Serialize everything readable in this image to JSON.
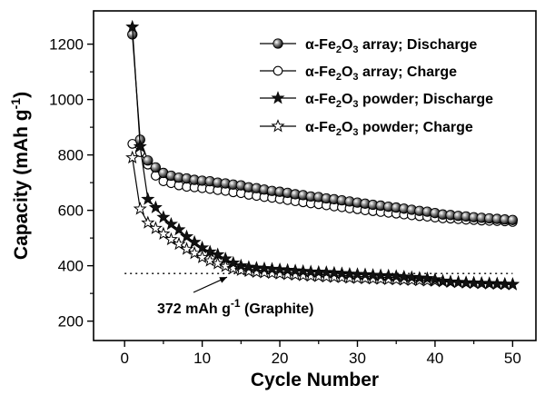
{
  "chart_data": {
    "type": "line",
    "xlabel": "Cycle Number",
    "ylabel": "Capacity (mAh g",
    "ylabel_sup": "-1",
    "ylabel_end": ")",
    "xlim": [
      -4,
      53
    ],
    "ylim": [
      130,
      1320
    ],
    "xticks": [
      0,
      10,
      20,
      30,
      40,
      50
    ],
    "yticks": [
      200,
      400,
      600,
      800,
      1000,
      1200
    ],
    "reference_line": {
      "y": 372,
      "x_range": [
        0,
        50
      ],
      "style": "dotted",
      "label_main": "372 mAh g",
      "label_sup": "-1",
      "label_end": " (Graphite)"
    },
    "legend_position": "top-right",
    "series": [
      {
        "name_pre": "α-Fe",
        "name_sub1": "2",
        "name_mid": "O",
        "name_sub2": "3",
        "name_post": " array; Discharge",
        "marker": "sphere",
        "x": [
          1,
          2,
          3,
          4,
          5,
          6,
          7,
          8,
          9,
          10,
          11,
          12,
          13,
          14,
          15,
          16,
          17,
          18,
          19,
          20,
          21,
          22,
          23,
          24,
          25,
          26,
          27,
          28,
          29,
          30,
          31,
          32,
          33,
          34,
          35,
          36,
          37,
          38,
          39,
          40,
          41,
          42,
          43,
          44,
          45,
          46,
          47,
          48,
          49,
          50
        ],
        "y": [
          1235,
          855,
          780,
          755,
          735,
          725,
          718,
          715,
          710,
          707,
          705,
          700,
          697,
          693,
          690,
          683,
          680,
          675,
          670,
          667,
          663,
          658,
          655,
          650,
          648,
          643,
          640,
          636,
          632,
          628,
          624,
          620,
          617,
          613,
          610,
          606,
          602,
          598,
          595,
          590,
          585,
          583,
          580,
          578,
          575,
          573,
          571,
          569,
          567,
          565
        ]
      },
      {
        "name_pre": "α-Fe",
        "name_sub1": "2",
        "name_mid": "O",
        "name_sub2": "3",
        "name_post": " array; Charge",
        "marker": "circle",
        "x": [
          1,
          2,
          3,
          4,
          5,
          6,
          7,
          8,
          9,
          10,
          11,
          12,
          13,
          14,
          15,
          16,
          17,
          18,
          19,
          20,
          21,
          22,
          23,
          24,
          25,
          26,
          27,
          28,
          29,
          30,
          31,
          32,
          33,
          34,
          35,
          36,
          37,
          38,
          39,
          40,
          41,
          42,
          43,
          44,
          45,
          46,
          47,
          48,
          49,
          50
        ],
        "y": [
          840,
          810,
          765,
          725,
          705,
          698,
          690,
          685,
          683,
          680,
          677,
          673,
          670,
          665,
          662,
          656,
          652,
          648,
          645,
          641,
          637,
          633,
          629,
          625,
          622,
          618,
          614,
          611,
          607,
          604,
          600,
          597,
          594,
          591,
          588,
          585,
          582,
          579,
          577,
          574,
          571,
          570,
          568,
          566,
          565,
          563,
          562,
          561,
          560,
          558
        ]
      },
      {
        "name_pre": "α-Fe",
        "name_sub1": "2",
        "name_mid": "O",
        "name_sub2": "3",
        "name_post": " powder; Discharge",
        "marker": "star-filled",
        "x": [
          1,
          2,
          3,
          4,
          5,
          6,
          7,
          8,
          9,
          10,
          11,
          12,
          13,
          14,
          15,
          16,
          17,
          18,
          19,
          20,
          21,
          22,
          23,
          24,
          25,
          26,
          27,
          28,
          29,
          30,
          31,
          32,
          33,
          34,
          35,
          36,
          37,
          38,
          39,
          40,
          41,
          42,
          43,
          44,
          45,
          46,
          47,
          48,
          49,
          50
        ],
        "y": [
          1262,
          830,
          640,
          610,
          575,
          550,
          530,
          505,
          485,
          465,
          450,
          440,
          425,
          410,
          400,
          395,
          392,
          390,
          388,
          386,
          384,
          382,
          380,
          378,
          377,
          376,
          374,
          372,
          370,
          369,
          368,
          366,
          365,
          364,
          362,
          360,
          358,
          356,
          354,
          350,
          345,
          342,
          340,
          338,
          337,
          336,
          335,
          334,
          333,
          332
        ]
      },
      {
        "name_pre": "α-Fe",
        "name_sub1": "2",
        "name_mid": "O",
        "name_sub2": "3",
        "name_post": " powder; Charge",
        "marker": "star-open",
        "x": [
          1,
          2,
          3,
          4,
          5,
          6,
          7,
          8,
          9,
          10,
          11,
          12,
          13,
          14,
          15,
          16,
          17,
          18,
          19,
          20,
          21,
          22,
          23,
          24,
          25,
          26,
          27,
          28,
          29,
          30,
          31,
          32,
          33,
          34,
          35,
          36,
          37,
          38,
          39,
          40,
          41,
          42,
          43,
          44,
          45,
          46,
          47,
          48,
          49,
          50
        ],
        "y": [
          790,
          605,
          555,
          535,
          515,
          495,
          478,
          460,
          445,
          430,
          418,
          408,
          398,
          390,
          384,
          380,
          377,
          375,
          373,
          371,
          369,
          367,
          365,
          363,
          362,
          360,
          359,
          358,
          356,
          355,
          354,
          353,
          352,
          351,
          350,
          349,
          348,
          347,
          346,
          345,
          343,
          341,
          340,
          339,
          338,
          337,
          336,
          335,
          334,
          333
        ]
      }
    ]
  }
}
